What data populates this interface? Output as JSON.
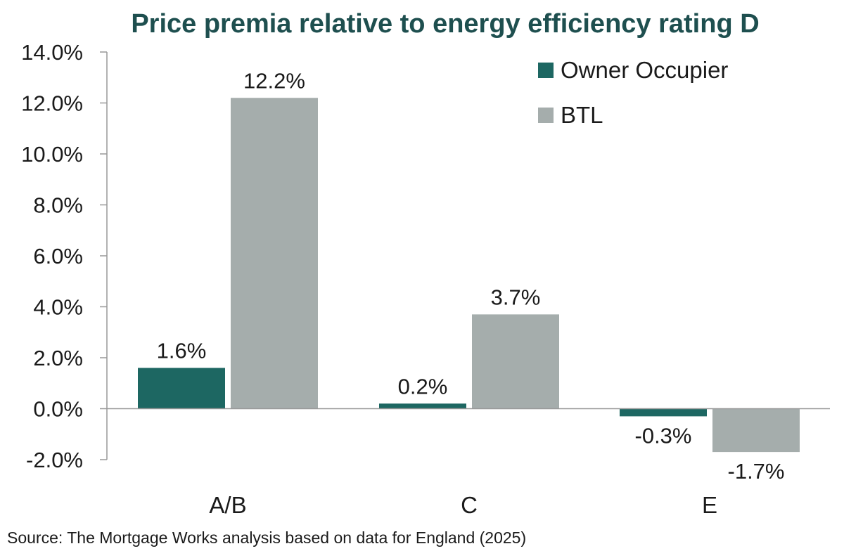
{
  "chart_data": {
    "type": "bar",
    "title": "Price premia relative to energy efficiency rating D",
    "categories": [
      "A/B",
      "C",
      "E"
    ],
    "series": [
      {
        "name": "Owner Occupier",
        "values": [
          1.6,
          0.2,
          -0.3
        ],
        "labels": [
          "1.6%",
          "0.2%",
          "-0.3%"
        ],
        "color": "#1d6762"
      },
      {
        "name": "BTL",
        "values": [
          12.2,
          3.7,
          -1.7
        ],
        "labels": [
          "12.2%",
          "3.7%",
          "-1.7%"
        ],
        "color": "#a5adac"
      }
    ],
    "ylim": [
      -2.0,
      14.0
    ],
    "yticks": [
      14.0,
      12.0,
      10.0,
      8.0,
      6.0,
      4.0,
      2.0,
      0.0,
      -2.0
    ],
    "ytick_labels": [
      "14.0%",
      "12.0%",
      "10.0%",
      "8.0%",
      "6.0%",
      "4.0%",
      "2.0%",
      "0.0%",
      "-2.0%"
    ],
    "legend_position": "top-right",
    "grid": false,
    "source": "Source: The Mortgage Works analysis based on data for England (2025)",
    "title_color": "#1e4f4f",
    "axis_color": "#999999"
  }
}
